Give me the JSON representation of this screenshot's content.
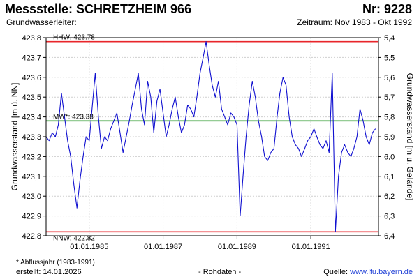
{
  "header": {
    "title": "Messstelle: SCHRETZHEIM 966",
    "number": "Nr: 9228",
    "aquifer": "Grundwasserleiter:",
    "period": "Zeitraum: Nov 1983 - Okt 1992"
  },
  "footer": {
    "footnote": "* Abflussjahr (1983-1991)",
    "created": "erstellt:  14.01.2026",
    "data_type": "- Rohdaten -",
    "source_label": "Quelle: ",
    "source_url": "www.lfu.bayern.de"
  },
  "chart_data": {
    "type": "line",
    "ylabel_left": "Grundwasserstand [m ü. NN]",
    "ylabel_right": "Grundwasserstand [m u. Gelände]",
    "xlim": [
      "1983-11-01",
      "1992-10-31"
    ],
    "ylim": [
      422.8,
      423.8
    ],
    "yticks_left": [
      "423,8",
      "423,7",
      "423,6",
      "423,5",
      "423,4",
      "423,3",
      "423,2",
      "423,1",
      "423,0",
      "422,9",
      "422,8"
    ],
    "yticks_right": [
      "5,4",
      "5,5",
      "5,6",
      "5,7",
      "5,8",
      "5,9",
      "6,0",
      "6,1",
      "6,2",
      "6,3",
      "6,4"
    ],
    "xticks": [
      {
        "date": "1985-01-01",
        "label": "01.01.1985"
      },
      {
        "date": "1987-01-01",
        "label": "01.01.1987"
      },
      {
        "date": "1989-01-01",
        "label": "01.01.1989"
      },
      {
        "date": "1991-01-01",
        "label": "01.01.1991"
      }
    ],
    "grid": true,
    "reference_lines": [
      {
        "label": "HHW: 423.78",
        "value": 423.78,
        "color": "#e8262b"
      },
      {
        "label": "MW*: 423.38",
        "value": 423.38,
        "color": "#2b9a2b"
      },
      {
        "label": "NNW: 422.82",
        "value": 422.82,
        "color": "#e8262b"
      }
    ],
    "series": [
      {
        "color": "#1010d0",
        "x": [
          "1983-11-01",
          "1983-12-01",
          "1984-01-01",
          "1984-02-01",
          "1984-03-01",
          "1984-04-01",
          "1984-05-01",
          "1984-06-01",
          "1984-07-01",
          "1984-08-01",
          "1984-09-01",
          "1984-10-01",
          "1984-11-01",
          "1984-12-01",
          "1985-01-01",
          "1985-02-01",
          "1985-03-01",
          "1985-04-01",
          "1985-05-01",
          "1985-06-01",
          "1985-07-01",
          "1985-08-01",
          "1985-09-01",
          "1985-10-01",
          "1985-11-01",
          "1985-12-01",
          "1986-01-01",
          "1986-02-01",
          "1986-03-01",
          "1986-04-01",
          "1986-05-01",
          "1986-06-01",
          "1986-07-01",
          "1986-08-01",
          "1986-09-01",
          "1986-10-01",
          "1986-11-01",
          "1986-12-01",
          "1987-01-01",
          "1987-02-01",
          "1987-03-01",
          "1987-04-01",
          "1987-05-01",
          "1987-06-01",
          "1987-07-01",
          "1987-08-01",
          "1987-09-01",
          "1987-10-01",
          "1987-11-01",
          "1987-12-01",
          "1988-01-01",
          "1988-02-01",
          "1988-03-01",
          "1988-04-01",
          "1988-05-01",
          "1988-06-01",
          "1988-07-01",
          "1988-08-01",
          "1988-09-01",
          "1988-10-01",
          "1988-11-01",
          "1988-12-01",
          "1989-01-01",
          "1989-02-01",
          "1989-03-01",
          "1989-04-01",
          "1989-05-01",
          "1989-06-01",
          "1989-07-01",
          "1989-08-01",
          "1989-09-01",
          "1989-10-01",
          "1989-11-01",
          "1989-12-01",
          "1990-01-01",
          "1990-02-01",
          "1990-03-01",
          "1990-04-01",
          "1990-05-01",
          "1990-06-01",
          "1990-07-01",
          "1990-08-01",
          "1990-09-01",
          "1990-10-01",
          "1990-11-01",
          "1990-12-01",
          "1991-01-01",
          "1991-02-01",
          "1991-03-01",
          "1991-04-01",
          "1991-05-01",
          "1991-06-01",
          "1991-07-01",
          "1991-08-01",
          "1991-09-01",
          "1991-10-01",
          "1991-11-01",
          "1991-12-01",
          "1992-01-01",
          "1992-02-01",
          "1992-03-01",
          "1992-04-01",
          "1992-05-01",
          "1992-06-01",
          "1992-07-01",
          "1992-08-01",
          "1992-09-01",
          "1992-10-01"
        ],
        "y": [
          423.3,
          423.28,
          423.32,
          423.3,
          423.36,
          423.52,
          423.4,
          423.28,
          423.2,
          423.06,
          422.94,
          423.08,
          423.2,
          423.3,
          423.28,
          423.46,
          423.62,
          423.4,
          423.24,
          423.3,
          423.28,
          423.34,
          423.38,
          423.42,
          423.32,
          423.22,
          423.3,
          423.38,
          423.46,
          423.54,
          423.62,
          423.44,
          423.36,
          423.58,
          423.5,
          423.32,
          423.48,
          423.54,
          423.42,
          423.3,
          423.36,
          423.44,
          423.5,
          423.4,
          423.32,
          423.36,
          423.46,
          423.44,
          423.4,
          423.5,
          423.62,
          423.7,
          423.78,
          423.66,
          423.56,
          423.5,
          423.58,
          423.44,
          423.4,
          423.36,
          423.42,
          423.4,
          423.36,
          422.9,
          423.1,
          423.3,
          423.46,
          423.58,
          423.5,
          423.38,
          423.3,
          423.2,
          423.18,
          423.22,
          423.24,
          423.4,
          423.52,
          423.6,
          423.56,
          423.4,
          423.3,
          423.26,
          423.24,
          423.2,
          423.24,
          423.28,
          423.3,
          423.34,
          423.3,
          423.26,
          423.24,
          423.28,
          423.22,
          423.62,
          422.82,
          423.1,
          423.22,
          423.26,
          423.22,
          423.2,
          423.24,
          423.3,
          423.44,
          423.38,
          423.3,
          423.26,
          423.32,
          423.34
        ]
      }
    ]
  }
}
